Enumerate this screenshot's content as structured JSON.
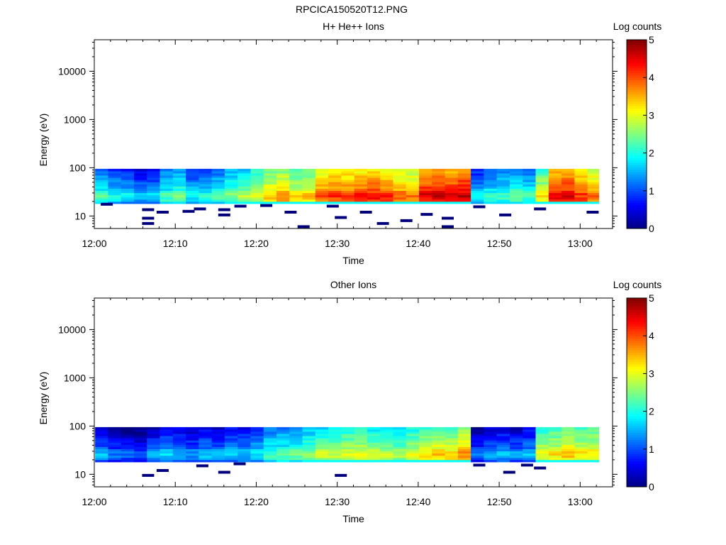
{
  "figure": {
    "title": "RPCICA150520T12.PNG"
  },
  "chart_data": [
    {
      "type": "heatmap",
      "title": "H+ He++ Ions",
      "xlabel": "Time",
      "ylabel": "Energy (eV)",
      "y_scale": "log",
      "x_tick_labels": [
        "12:00",
        "12:10",
        "12:20",
        "12:30",
        "12:40",
        "12:50",
        "13:00"
      ],
      "x_range_minutes": [
        0,
        64
      ],
      "y_tick_labels": [
        "10",
        "100",
        "1000",
        "10000"
      ],
      "y_range": [
        5.5,
        45000
      ],
      "colorbar": {
        "label": "Log counts",
        "range": [
          0,
          5
        ],
        "tick_labels": [
          "0",
          "1",
          "2",
          "3",
          "4",
          "5"
        ]
      },
      "energy_range_eV": [
        18,
        95
      ],
      "data_start_minute": 0.1,
      "data_end_minute": 62.3,
      "time_minutes": [
        0.1,
        1.7,
        3.3,
        4.9,
        6.5,
        8.1,
        9.7,
        11.3,
        12.9,
        14.5,
        16.1,
        17.7,
        19.3,
        20.9,
        22.5,
        24.1,
        25.7,
        27.3,
        28.9,
        30.5,
        32.1,
        33.7,
        35.3,
        36.9,
        38.5,
        40.1,
        41.7,
        43.3,
        44.9,
        46.5,
        48.1,
        49.7,
        51.3,
        52.9,
        54.5,
        56.1,
        57.7,
        59.3,
        60.9
      ],
      "log_counts": [
        2.0,
        1.7,
        1.6,
        1.4,
        1.5,
        2.0,
        2.2,
        1.7,
        1.8,
        2.0,
        2.3,
        2.5,
        2.8,
        3.2,
        3.4,
        3.0,
        3.2,
        3.8,
        3.9,
        3.9,
        4.0,
        4.1,
        4.0,
        3.7,
        3.6,
        4.3,
        4.4,
        4.3,
        4.5,
        1.6,
        1.9,
        2.0,
        2.2,
        2.0,
        3.0,
        4.2,
        4.3,
        3.9,
        3.6
      ],
      "low_energy_counts": [
        {
          "time_minute": 1.5,
          "energy_eV": 17.5
        },
        {
          "time_minute": 6.6,
          "energy_eV": 13.5
        },
        {
          "time_minute": 6.6,
          "energy_eV": 9.0
        },
        {
          "time_minute": 6.6,
          "energy_eV": 7.0
        },
        {
          "time_minute": 8.4,
          "energy_eV": 12.0
        },
        {
          "time_minute": 11.6,
          "energy_eV": 12.5
        },
        {
          "time_minute": 13.0,
          "energy_eV": 14.0
        },
        {
          "time_minute": 16.0,
          "energy_eV": 13.5
        },
        {
          "time_minute": 16.0,
          "energy_eV": 10.5
        },
        {
          "time_minute": 18.0,
          "energy_eV": 16.0
        },
        {
          "time_minute": 21.2,
          "energy_eV": 16.5
        },
        {
          "time_minute": 24.2,
          "energy_eV": 12.0
        },
        {
          "time_minute": 25.8,
          "energy_eV": 6.0
        },
        {
          "time_minute": 29.4,
          "energy_eV": 16.0
        },
        {
          "time_minute": 30.4,
          "energy_eV": 9.3
        },
        {
          "time_minute": 33.5,
          "energy_eV": 12.0
        },
        {
          "time_minute": 35.6,
          "energy_eV": 7.0
        },
        {
          "time_minute": 38.5,
          "energy_eV": 8.0
        },
        {
          "time_minute": 41.0,
          "energy_eV": 10.8
        },
        {
          "time_minute": 43.6,
          "energy_eV": 9.0
        },
        {
          "time_minute": 43.6,
          "energy_eV": 6.0
        },
        {
          "time_minute": 47.5,
          "energy_eV": 15.5
        },
        {
          "time_minute": 50.7,
          "energy_eV": 10.5
        },
        {
          "time_minute": 55.0,
          "energy_eV": 14.0
        },
        {
          "time_minute": 61.5,
          "energy_eV": 12.0
        }
      ]
    },
    {
      "type": "heatmap",
      "title": "Other Ions",
      "xlabel": "Time",
      "ylabel": "Energy (eV)",
      "y_scale": "log",
      "x_tick_labels": [
        "12:00",
        "12:10",
        "12:20",
        "12:30",
        "12:40",
        "12:50",
        "13:00"
      ],
      "x_range_minutes": [
        0,
        64
      ],
      "y_tick_labels": [
        "10",
        "100",
        "1000",
        "10000"
      ],
      "y_range": [
        5.5,
        45000
      ],
      "colorbar": {
        "label": "Log counts",
        "range": [
          0,
          5
        ],
        "tick_labels": [
          "0",
          "1",
          "2",
          "3",
          "4",
          "5"
        ]
      },
      "energy_range_eV": [
        18,
        95
      ],
      "data_start_minute": 0.1,
      "data_end_minute": 62.3,
      "time_minutes": [
        0.1,
        1.7,
        3.3,
        4.9,
        6.5,
        8.1,
        9.7,
        11.3,
        12.9,
        14.5,
        16.1,
        17.7,
        19.3,
        20.9,
        22.5,
        24.1,
        25.7,
        27.3,
        28.9,
        30.5,
        32.1,
        33.7,
        35.3,
        36.9,
        38.5,
        40.1,
        41.7,
        43.3,
        44.9,
        46.5,
        48.1,
        49.7,
        51.3,
        52.9,
        54.5,
        56.1,
        57.7,
        59.3,
        60.9
      ],
      "log_counts": [
        1.3,
        1.0,
        0.9,
        0.8,
        1.2,
        1.5,
        1.3,
        1.2,
        1.4,
        1.3,
        1.5,
        1.4,
        1.6,
        2.0,
        2.1,
        2.2,
        2.4,
        2.6,
        2.6,
        2.8,
        2.9,
        2.7,
        2.6,
        2.5,
        2.8,
        3.0,
        3.2,
        3.1,
        3.4,
        1.0,
        1.2,
        1.3,
        1.2,
        1.4,
        2.9,
        3.0,
        3.2,
        3.0,
        3.1
      ],
      "low_energy_counts": [
        {
          "time_minute": 6.6,
          "energy_eV": 9.5
        },
        {
          "time_minute": 8.4,
          "energy_eV": 12.0
        },
        {
          "time_minute": 13.3,
          "energy_eV": 15.0
        },
        {
          "time_minute": 16.0,
          "energy_eV": 11.0
        },
        {
          "time_minute": 17.9,
          "energy_eV": 16.5
        },
        {
          "time_minute": 30.4,
          "energy_eV": 9.5
        },
        {
          "time_minute": 47.5,
          "energy_eV": 15.5
        },
        {
          "time_minute": 51.2,
          "energy_eV": 11.0
        },
        {
          "time_minute": 53.4,
          "energy_eV": 15.5
        },
        {
          "time_minute": 55.0,
          "energy_eV": 13.5
        }
      ]
    }
  ]
}
